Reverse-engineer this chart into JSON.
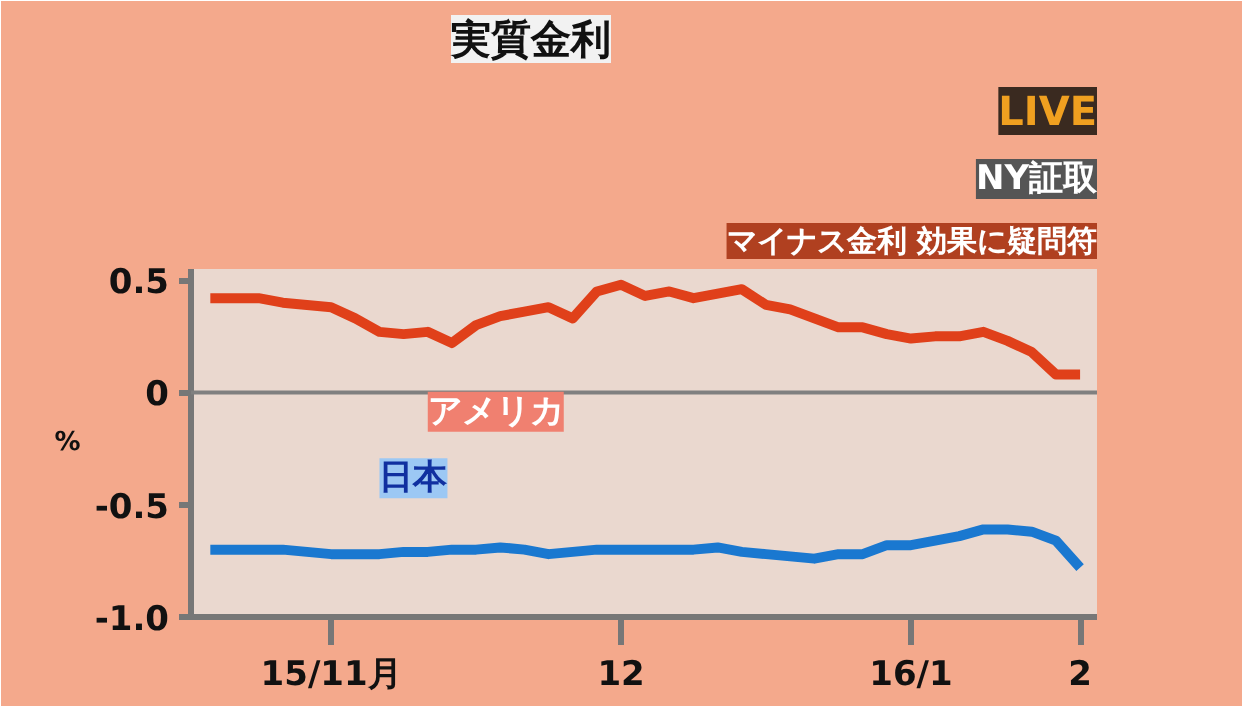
{
  "chart_data": {
    "type": "line",
    "title": "実質金利",
    "ylabel": "%",
    "annotations": [
      "LIVE",
      "NY証取",
      "マイナス金利 効果に疑問符"
    ],
    "categories": [
      null,
      null,
      null,
      null,
      null,
      "15/11月",
      null,
      null,
      null,
      null,
      null,
      null,
      null,
      null,
      null,
      null,
      null,
      "12",
      null,
      null,
      null,
      null,
      null,
      null,
      null,
      null,
      null,
      null,
      null,
      "16/1",
      null,
      null,
      null,
      null,
      null,
      null,
      "2"
    ],
    "series": [
      {
        "name": "アメリカ",
        "color": "#e0401a",
        "values": [
          0.42,
          0.42,
          0.42,
          0.4,
          0.39,
          0.38,
          0.33,
          0.27,
          0.26,
          0.27,
          0.22,
          0.3,
          0.34,
          0.36,
          0.38,
          0.33,
          0.45,
          0.48,
          0.43,
          0.45,
          0.42,
          0.44,
          0.46,
          0.39,
          0.37,
          0.33,
          0.29,
          0.29,
          0.26,
          0.24,
          0.25,
          0.25,
          0.27,
          0.23,
          0.18,
          0.08,
          0.08
        ]
      },
      {
        "name": "日本",
        "color": "#1a78d0",
        "values": [
          -0.7,
          -0.7,
          -0.7,
          -0.7,
          -0.71,
          -0.72,
          -0.72,
          -0.72,
          -0.71,
          -0.71,
          -0.7,
          -0.7,
          -0.69,
          -0.7,
          -0.72,
          -0.71,
          -0.7,
          -0.7,
          -0.7,
          -0.7,
          -0.7,
          -0.69,
          -0.71,
          -0.72,
          -0.73,
          -0.74,
          -0.72,
          -0.72,
          -0.68,
          -0.68,
          -0.66,
          -0.64,
          -0.61,
          -0.61,
          -0.62,
          -0.66,
          -0.78
        ]
      }
    ],
    "ylim": [
      -1.0,
      0.55
    ],
    "yticks": [
      0.5,
      0,
      -0.5,
      {
        "value": -1.0,
        "label": "-1.0"
      }
    ],
    "ref_lines": [
      {
        "axis": "y",
        "value": 0,
        "color": "#808080"
      }
    ],
    "grid": false,
    "marker": "none",
    "line_style": "solid"
  }
}
